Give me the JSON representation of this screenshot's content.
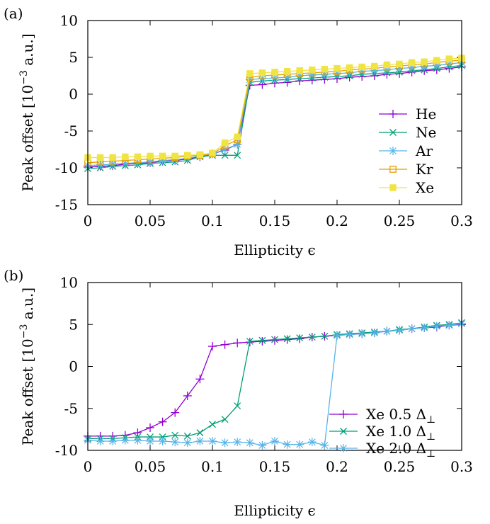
{
  "chart_data": [
    {
      "type": "line",
      "panel_label": "(a)",
      "xlabel": "Ellipticity ϵ",
      "ylabel_main": "Peak offset [10",
      "ylabel_exp": "−3",
      "ylabel_unit": " a.u.]",
      "xlim": [
        0,
        0.3
      ],
      "ylim": [
        -15,
        10
      ],
      "xticks": [
        0,
        0.05,
        0.1,
        0.15,
        0.2,
        0.25,
        0.3
      ],
      "xtick_labels": [
        "0",
        "0.05",
        "0.1",
        "0.15",
        "0.2",
        "0.25",
        "0.3"
      ],
      "yticks": [
        -15,
        -10,
        -5,
        0,
        5,
        10
      ],
      "ytick_labels": [
        "-15",
        "-10",
        "-5",
        "0",
        "5",
        "10"
      ],
      "legend_position": "bottom-right",
      "x": [
        0,
        0.01,
        0.02,
        0.03,
        0.04,
        0.05,
        0.06,
        0.07,
        0.08,
        0.09,
        0.1,
        0.11,
        0.12,
        0.13,
        0.14,
        0.15,
        0.16,
        0.17,
        0.18,
        0.19,
        0.2,
        0.21,
        0.22,
        0.23,
        0.24,
        0.25,
        0.26,
        0.27,
        0.28,
        0.29,
        0.3
      ],
      "series": [
        {
          "name": "He",
          "color": "#9400d3",
          "marker": "plus",
          "values": [
            -9.9,
            -9.8,
            -9.7,
            -9.5,
            -9.4,
            -9.3,
            -9.1,
            -9.0,
            -8.8,
            -8.5,
            -8.1,
            -7.6,
            -6.8,
            1.2,
            1.3,
            1.5,
            1.6,
            1.8,
            1.9,
            2.0,
            2.1,
            2.3,
            2.4,
            2.5,
            2.7,
            2.8,
            3.0,
            3.2,
            3.3,
            3.5,
            3.7
          ]
        },
        {
          "name": "Ne",
          "color": "#009e73",
          "marker": "cross",
          "values": [
            -10.1,
            -10.0,
            -9.8,
            -9.7,
            -9.6,
            -9.4,
            -9.3,
            -9.2,
            -9.0,
            -8.5,
            -8.3,
            -8.3,
            -8.3,
            1.6,
            1.8,
            1.9,
            2.0,
            2.1,
            2.2,
            2.3,
            2.4,
            2.5,
            2.7,
            2.8,
            2.9,
            3.0,
            3.2,
            3.3,
            3.5,
            3.7,
            3.9
          ]
        },
        {
          "name": "Ar",
          "color": "#56b4e9",
          "marker": "star",
          "values": [
            -9.7,
            -9.6,
            -9.5,
            -9.4,
            -9.3,
            -9.2,
            -9.0,
            -8.9,
            -8.7,
            -8.4,
            -8.1,
            -7.5,
            -6.8,
            2.0,
            2.1,
            2.2,
            2.3,
            2.5,
            2.6,
            2.7,
            2.8,
            2.9,
            3.1,
            3.2,
            3.3,
            3.5,
            3.6,
            3.8,
            3.9,
            4.1,
            4.3
          ]
        },
        {
          "name": "Kr",
          "color": "#e69f00",
          "marker": "square",
          "values": [
            -9.3,
            -9.2,
            -9.1,
            -9.0,
            -8.9,
            -8.8,
            -8.7,
            -8.6,
            -8.4,
            -8.3,
            -8.1,
            -7.0,
            -6.2,
            2.3,
            2.5,
            2.6,
            2.7,
            2.8,
            2.9,
            3.0,
            3.1,
            3.3,
            3.4,
            3.5,
            3.7,
            3.8,
            4.0,
            4.1,
            4.3,
            4.5,
            4.6
          ]
        },
        {
          "name": "Xe",
          "color": "#f0e442",
          "marker": "filled-square",
          "values": [
            -8.6,
            -8.6,
            -8.6,
            -8.5,
            -8.5,
            -8.4,
            -8.4,
            -8.4,
            -8.3,
            -8.2,
            -8.0,
            -6.6,
            -5.8,
            2.8,
            2.9,
            3.0,
            3.1,
            3.2,
            3.3,
            3.4,
            3.5,
            3.6,
            3.7,
            3.8,
            4.0,
            4.1,
            4.3,
            4.4,
            4.6,
            4.8,
            4.9
          ]
        }
      ]
    },
    {
      "type": "line",
      "panel_label": "(b)",
      "xlabel": "Ellipticity ϵ",
      "ylabel_main": "Peak offset [10",
      "ylabel_exp": "−3",
      "ylabel_unit": " a.u.]",
      "xlim": [
        0,
        0.3
      ],
      "ylim": [
        -10,
        10
      ],
      "xticks": [
        0,
        0.05,
        0.1,
        0.15,
        0.2,
        0.25,
        0.3
      ],
      "xtick_labels": [
        "0",
        "0.05",
        "0.1",
        "0.15",
        "0.2",
        "0.25",
        "0.3"
      ],
      "yticks": [
        -10,
        -5,
        0,
        5,
        10
      ],
      "ytick_labels": [
        "-10",
        "-5",
        "0",
        "5",
        "10"
      ],
      "legend_position": "bottom-right",
      "x": [
        0,
        0.01,
        0.02,
        0.03,
        0.04,
        0.05,
        0.06,
        0.07,
        0.08,
        0.09,
        0.1,
        0.11,
        0.12,
        0.13,
        0.14,
        0.15,
        0.16,
        0.17,
        0.18,
        0.19,
        0.2,
        0.21,
        0.22,
        0.23,
        0.24,
        0.25,
        0.26,
        0.27,
        0.28,
        0.29,
        0.3
      ],
      "series": [
        {
          "name": "Xe 0.5 Δ⊥",
          "legend_main": "Xe 0.5 Δ",
          "legend_sub": "⊥",
          "color": "#9400d3",
          "marker": "plus",
          "values": [
            -8.3,
            -8.3,
            -8.3,
            -8.2,
            -7.9,
            -7.3,
            -6.6,
            -5.5,
            -3.5,
            -1.5,
            2.4,
            2.6,
            2.8,
            2.9,
            3.0,
            3.1,
            3.2,
            3.3,
            3.5,
            3.6,
            3.7,
            3.8,
            3.9,
            4.0,
            4.2,
            4.3,
            4.5,
            4.6,
            4.7,
            4.9,
            5.0
          ]
        },
        {
          "name": "Xe 1.0 Δ⊥",
          "legend_main": "Xe 1.0 Δ",
          "legend_sub": "⊥",
          "color": "#009e73",
          "marker": "cross",
          "values": [
            -8.6,
            -8.6,
            -8.6,
            -8.5,
            -8.4,
            -8.4,
            -8.4,
            -8.2,
            -8.3,
            -7.9,
            -6.9,
            -6.3,
            -4.7,
            3.0,
            3.1,
            3.2,
            3.3,
            3.4,
            3.5,
            3.6,
            3.8,
            3.9,
            4.0,
            4.1,
            4.2,
            4.4,
            4.5,
            4.7,
            4.9,
            5.0,
            5.2
          ]
        },
        {
          "name": "Xe 2.0 Δ⊥",
          "legend_main": "Xe 2.0 Δ",
          "legend_sub": "⊥",
          "color": "#56b4e9",
          "marker": "star",
          "values": [
            -8.8,
            -8.9,
            -8.9,
            -8.8,
            -8.8,
            -8.9,
            -8.9,
            -9.0,
            -9.1,
            -8.9,
            -8.9,
            -9.1,
            -9.0,
            -9.1,
            -9.4,
            -8.9,
            -9.3,
            -9.3,
            -9.0,
            -9.4,
            3.7,
            3.8,
            3.9,
            4.0,
            4.2,
            4.3,
            4.5,
            4.6,
            4.8,
            4.9,
            5.1
          ]
        }
      ]
    }
  ]
}
